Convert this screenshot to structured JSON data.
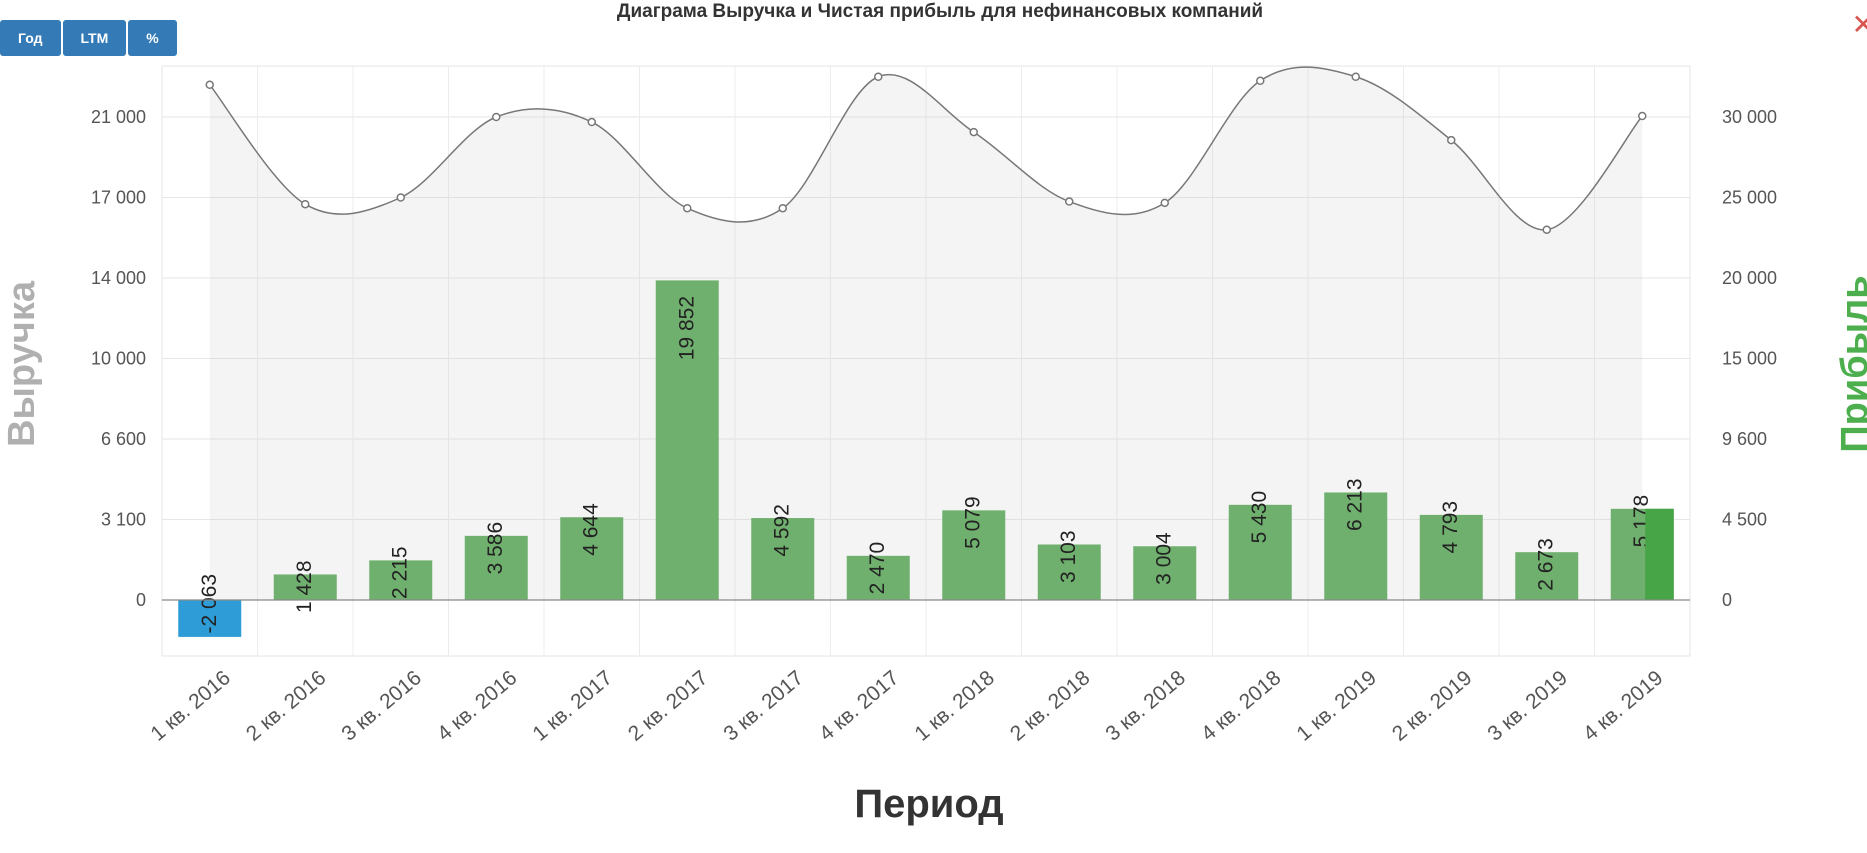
{
  "controls": {
    "buttons": [
      "Год",
      "LTM",
      "%"
    ],
    "close_label": "✕"
  },
  "chart_data": {
    "type": "bar+area",
    "title": "Диаграма Выручка и Чистая прибыль для нефинансовых компаний",
    "xlabel": "Период",
    "ylabel_left": "Выручка",
    "ylabel_right": "Прибыль",
    "categories": [
      "1 кв. 2016",
      "2 кв. 2016",
      "3 кв. 2016",
      "4 кв. 2016",
      "1 кв. 2017",
      "2 кв. 2017",
      "3 кв. 2017",
      "4 кв. 2017",
      "1 кв. 2018",
      "2 кв. 2018",
      "3 кв. 2018",
      "4 кв. 2018",
      "1 кв. 2019",
      "2 кв. 2019",
      "3 кв. 2019",
      "4 кв. 2019"
    ],
    "series": [
      {
        "name": "Выручка",
        "type": "area",
        "axis": "left",
        "color": "#808080",
        "values": [
          22600,
          16750,
          17000,
          21000,
          20750,
          16600,
          16600,
          23000,
          20250,
          16850,
          16800,
          22800,
          23000,
          19850,
          15800,
          21050
        ]
      },
      {
        "name": "Прибыль",
        "type": "bar",
        "axis": "right",
        "color": "#70b06e",
        "negative_color": "#2e9cd6",
        "values": [
          -2063,
          1428,
          2215,
          3586,
          4644,
          19852,
          4592,
          2470,
          5079,
          3103,
          3004,
          5430,
          6213,
          4793,
          2673,
          5178
        ],
        "labels": [
          "-2 063",
          "1 428",
          "2 215",
          "3 586",
          "4 644",
          "19 852",
          "4 592",
          "2 470",
          "5 079",
          "3 103",
          "3 004",
          "5 430",
          "6 213",
          "4 793",
          "2 673",
          "5 178"
        ]
      }
    ],
    "left_ticks": [
      "21 000",
      "17 000",
      "14 000",
      "10 000",
      "6 600",
      "3 100",
      "0"
    ],
    "right_ticks": [
      "30 000",
      "25 000",
      "20 000",
      "15 000",
      "9 600",
      "4 500",
      "0"
    ],
    "grid": true
  }
}
